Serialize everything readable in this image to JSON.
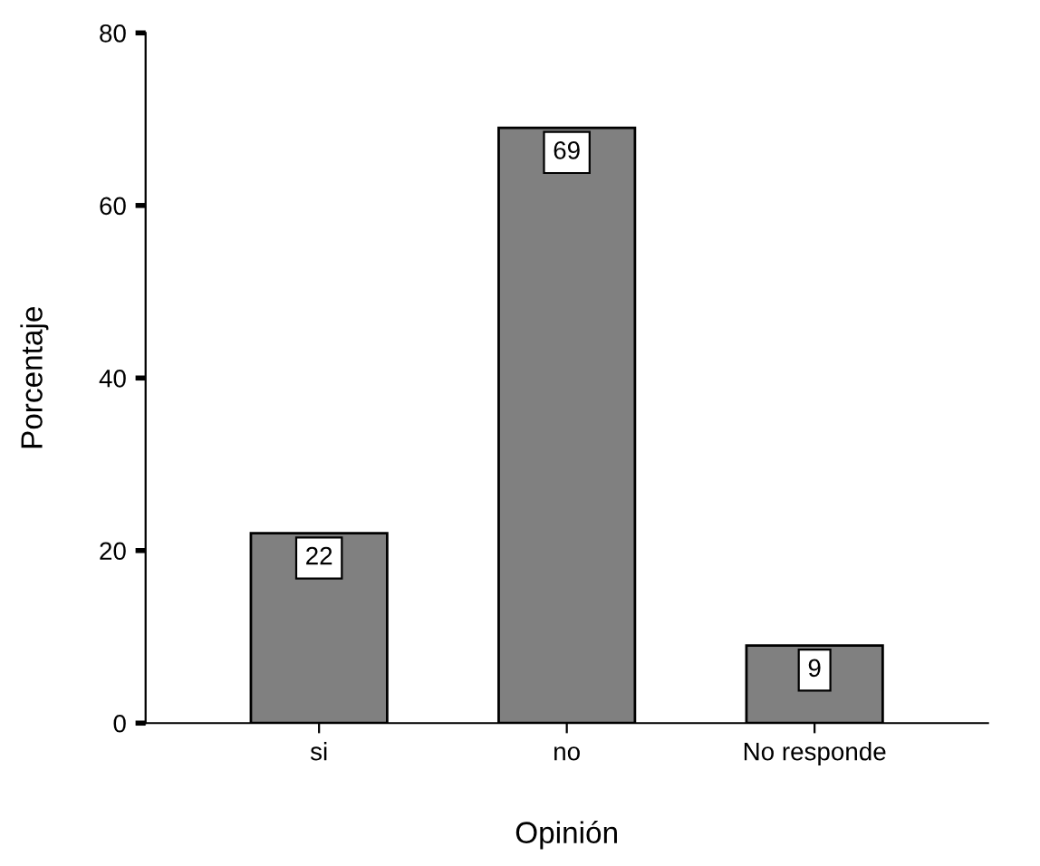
{
  "chart_data": {
    "type": "bar",
    "xlabel": "Opinión",
    "ylabel": "Porcentaje",
    "categories": [
      "si",
      "no",
      "No responde"
    ],
    "values": [
      22,
      69,
      9
    ],
    "color": "#808080",
    "ylim": [
      0,
      80
    ],
    "yticks": [
      0,
      20,
      40,
      60,
      80
    ],
    "data_labels": true,
    "grid": false
  }
}
